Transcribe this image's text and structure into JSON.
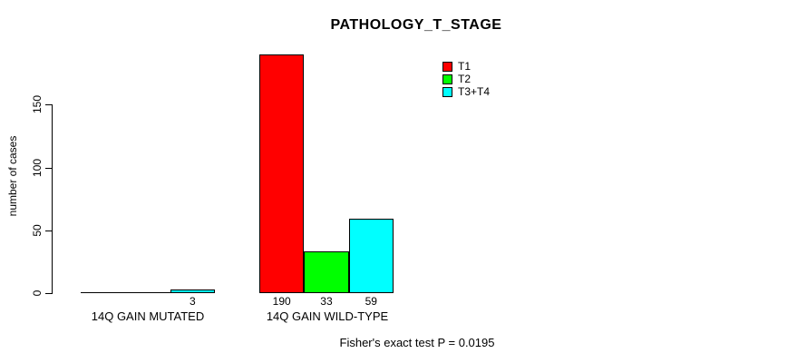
{
  "chart_data": {
    "type": "bar",
    "title": "PATHOLOGY_T_STAGE",
    "ylabel": "number of cases",
    "yticks": [
      0,
      50,
      100,
      150
    ],
    "ylim": [
      0,
      190
    ],
    "grid": false,
    "categories": [
      "14Q GAIN MUTATED",
      "14Q GAIN WILD-TYPE"
    ],
    "series": [
      {
        "name": "T1",
        "color": "#ff0000",
        "values": [
          0,
          190
        ]
      },
      {
        "name": "T2",
        "color": "#00ff00",
        "values": [
          0,
          33
        ]
      },
      {
        "name": "T3+T4",
        "color": "#00ffff",
        "values": [
          3,
          59
        ]
      }
    ],
    "value_labels": {
      "show_zero": false
    },
    "legend_position": "top-right",
    "annotation": "Fisher's exact test P = 0.0195"
  },
  "colors": {
    "axis": "#000000",
    "text": "#000000",
    "background": "#ffffff"
  }
}
